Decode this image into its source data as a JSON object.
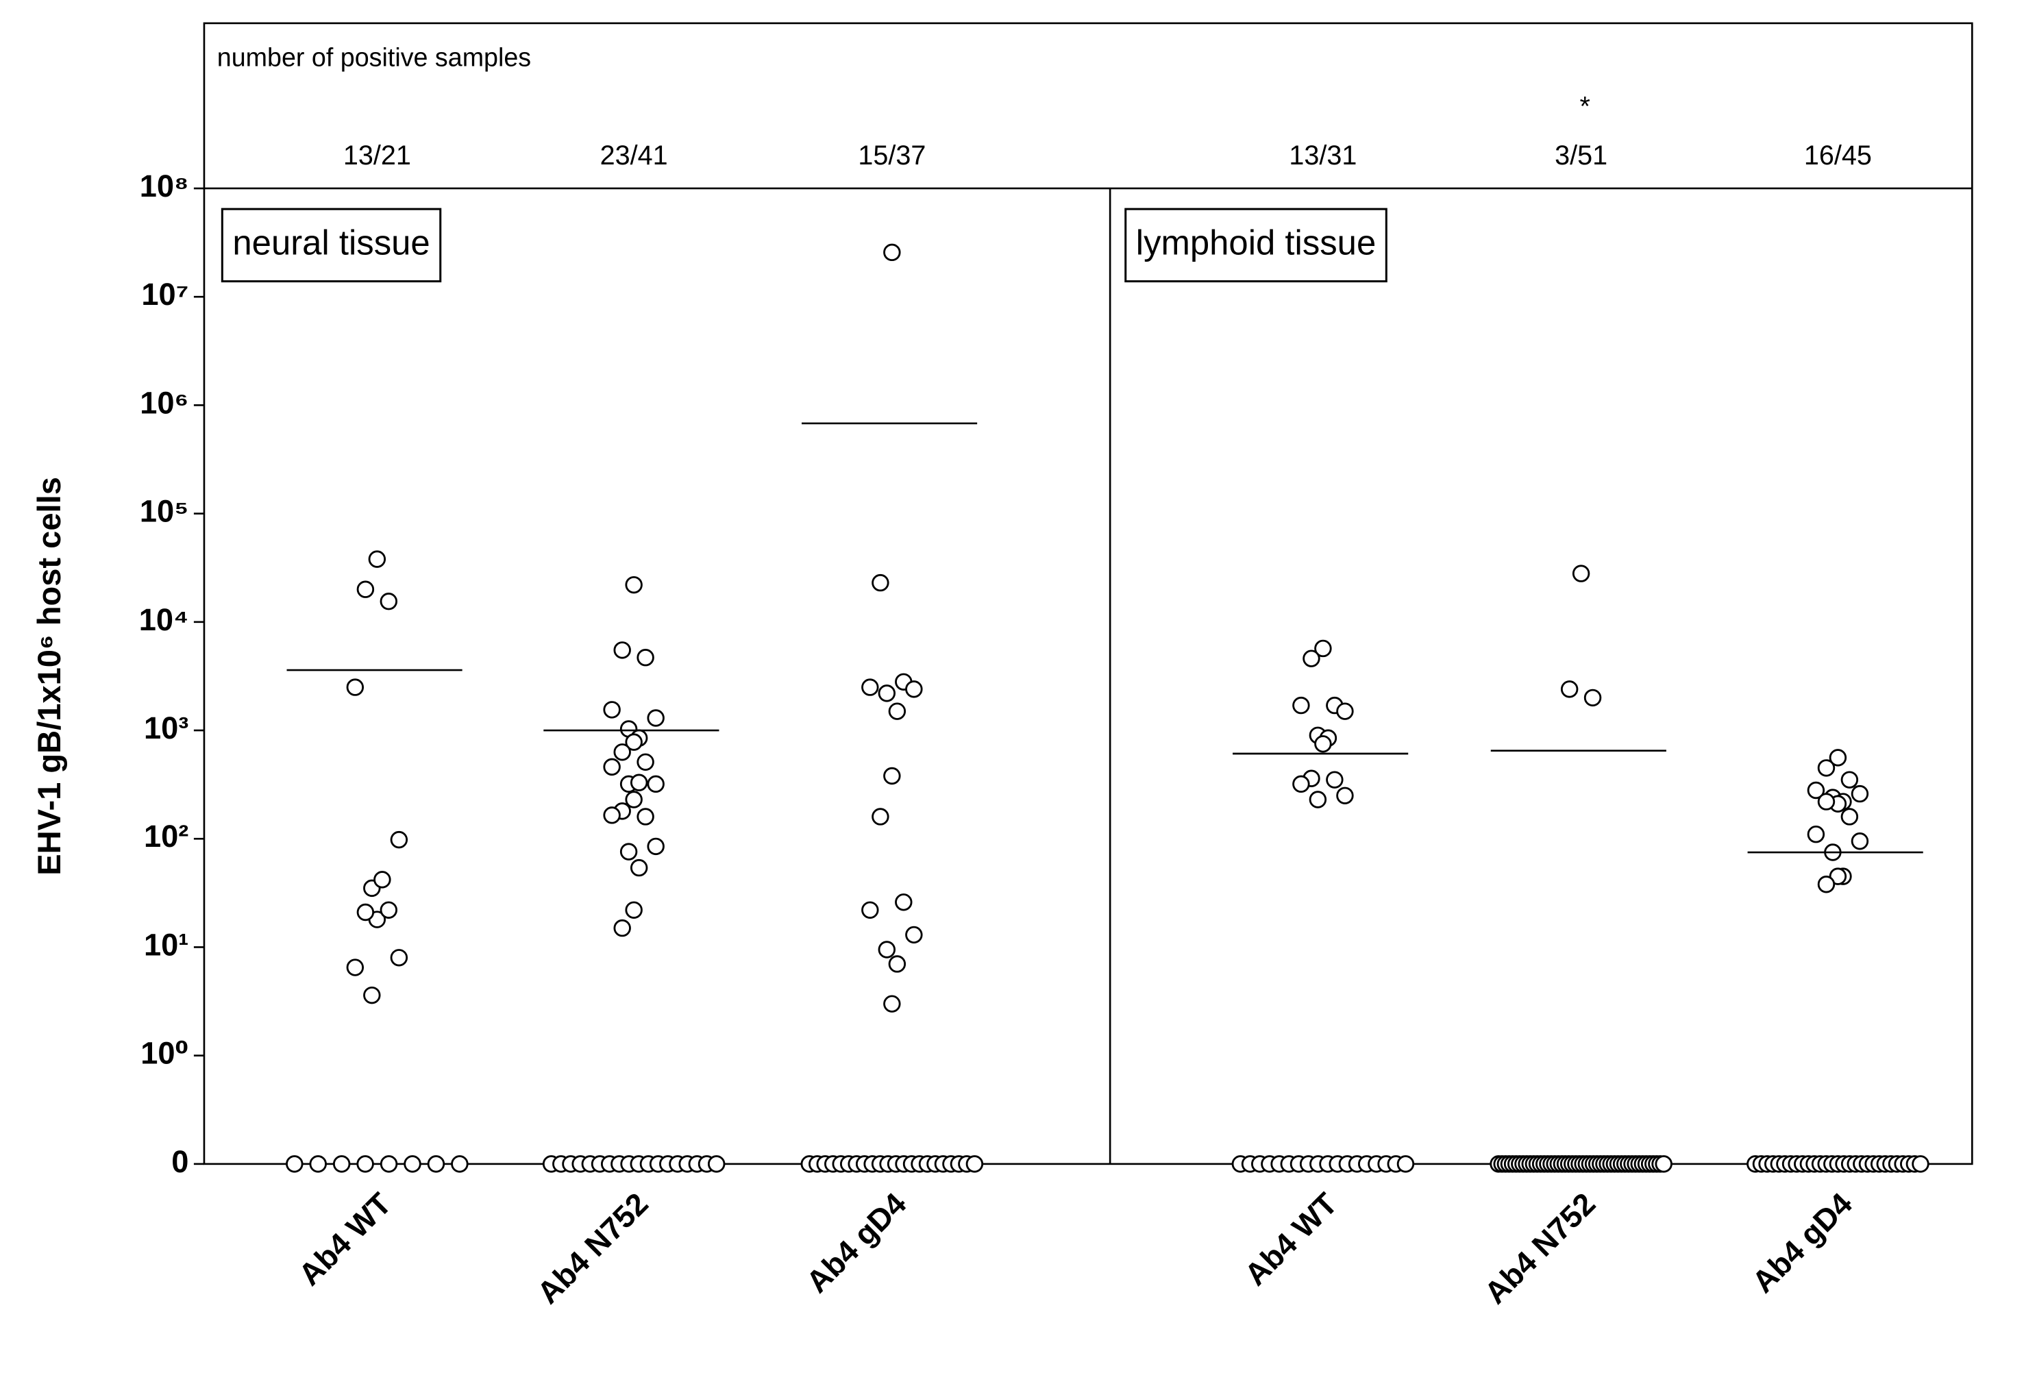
{
  "chart_data": {
    "type": "scatter",
    "y_label": "EHV-1 gB/1x10⁶ host cells",
    "header_label": "number of positive samples",
    "log_scale": true,
    "ylim": [
      0,
      100000000
    ],
    "yticks": [
      0,
      {
        "value": 1,
        "label": "10⁰"
      },
      {
        "value": 10,
        "label": "10¹"
      },
      {
        "value": 100,
        "label": "10²"
      },
      {
        "value": 1000,
        "label": "10³"
      },
      {
        "value": 10000,
        "label": "10⁴"
      },
      {
        "value": 100000,
        "label": "10⁵"
      },
      {
        "value": 1000000,
        "label": "10⁶"
      },
      {
        "value": 10000000,
        "label": "10⁷"
      },
      {
        "value": 100000000,
        "label": "10⁸"
      }
    ],
    "color": "#000000",
    "panels": [
      {
        "label": "neural tissue",
        "groups": [
          {
            "name": "Ab4 WT",
            "count": "13/21",
            "mean": 3600,
            "values": [
              38000,
              20000,
              15500,
              2500,
              98,
              35,
              42,
              18,
              21,
              22,
              6.5,
              8,
              3.6,
              0,
              0,
              0,
              0,
              0,
              0,
              0,
              0
            ]
          },
          {
            "name": "Ab4 N752",
            "count": "23/41",
            "mean": 1000,
            "values": [
              22000,
              5500,
              4700,
              1550,
              1300,
              1030,
              850,
              780,
              630,
              510,
              460,
              320,
              320,
              330,
              230,
              180,
              160,
              165,
              85,
              76,
              54,
              22,
              15,
              0,
              0,
              0,
              0,
              0,
              0,
              0,
              0,
              0,
              0,
              0,
              0,
              0,
              0,
              0,
              0,
              0,
              0
            ]
          },
          {
            "name": "Ab4 gD4",
            "count": "15/37",
            "mean": 680000,
            "values": [
              25700000,
              23000,
              2800,
              2500,
              2400,
              2200,
              1500,
              380,
              160,
              26,
              22,
              13,
              9.5,
              7,
              3,
              0,
              0,
              0,
              0,
              0,
              0,
              0,
              0,
              0,
              0,
              0,
              0,
              0,
              0,
              0,
              0,
              0,
              0,
              0,
              0,
              0,
              0
            ]
          }
        ]
      },
      {
        "label": "lymphoid tissue",
        "groups": [
          {
            "name": "Ab4 WT",
            "count": "13/31",
            "mean": 610,
            "values": [
              5700,
              4600,
              1700,
              1700,
              1500,
              900,
              850,
              750,
              360,
              350,
              320,
              250,
              230,
              0,
              0,
              0,
              0,
              0,
              0,
              0,
              0,
              0,
              0,
              0,
              0,
              0,
              0,
              0,
              0,
              0,
              0
            ]
          },
          {
            "name": "Ab4 N752",
            "count": "3/51",
            "significance": "*",
            "mean": 650,
            "values": [
              28000,
              2400,
              2000,
              0,
              0,
              0,
              0,
              0,
              0,
              0,
              0,
              0,
              0,
              0,
              0,
              0,
              0,
              0,
              0,
              0,
              0,
              0,
              0,
              0,
              0,
              0,
              0,
              0,
              0,
              0,
              0,
              0,
              0,
              0,
              0,
              0,
              0,
              0,
              0,
              0,
              0,
              0,
              0,
              0,
              0,
              0,
              0,
              0,
              0,
              0,
              0
            ]
          },
          {
            "name": "Ab4 gD4",
            "count": "16/45",
            "mean": 75,
            "values": [
              560,
              450,
              350,
              280,
              260,
              240,
              220,
              210,
              220,
              160,
              110,
              95,
              75,
              45,
              45,
              38,
              0,
              0,
              0,
              0,
              0,
              0,
              0,
              0,
              0,
              0,
              0,
              0,
              0,
              0,
              0,
              0,
              0,
              0,
              0,
              0,
              0,
              0,
              0,
              0,
              0,
              0,
              0,
              0,
              0
            ]
          }
        ]
      }
    ]
  }
}
